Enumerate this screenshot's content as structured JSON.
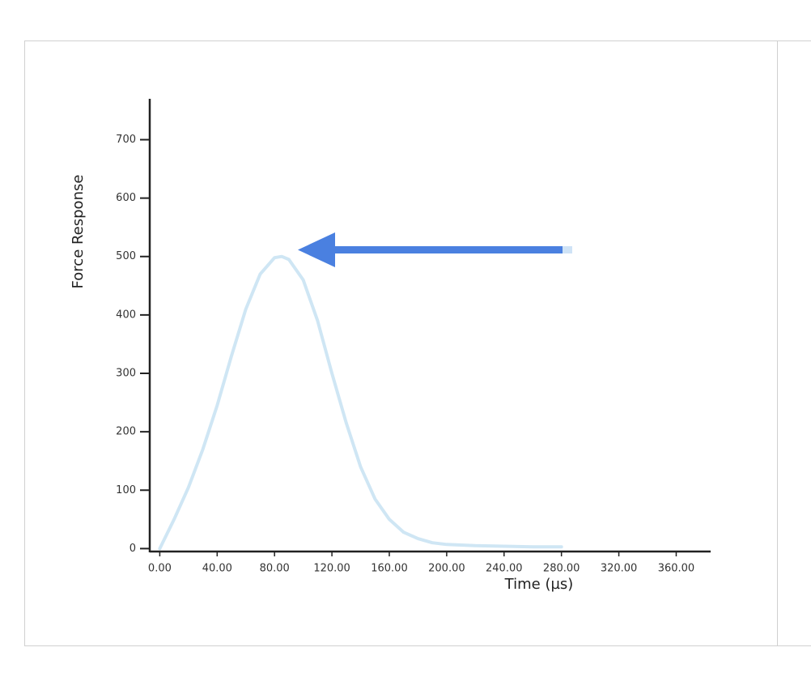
{
  "chart_data": {
    "type": "line",
    "y_label": "Force Response",
    "x_label": "Time (µs)",
    "x": [
      0,
      10,
      20,
      30,
      40,
      50,
      60,
      70,
      80,
      85,
      90,
      100,
      110,
      120,
      130,
      140,
      150,
      160,
      170,
      180,
      190,
      200,
      220,
      240,
      260,
      280
    ],
    "values": [
      0,
      50,
      105,
      170,
      245,
      330,
      410,
      470,
      498,
      500,
      495,
      460,
      390,
      300,
      215,
      140,
      85,
      50,
      28,
      17,
      10,
      7,
      5,
      4,
      3,
      3
    ],
    "color": "#cfe6f4",
    "xlim": [
      -7,
      384
    ],
    "ylim": [
      -5,
      770
    ],
    "xticks": [
      {
        "value": 0,
        "label": "0.00"
      },
      {
        "value": 40,
        "label": "40.00"
      },
      {
        "value": 80,
        "label": "80.00"
      },
      {
        "value": 120,
        "label": "120.00"
      },
      {
        "value": 160,
        "label": "160.00"
      },
      {
        "value": 200,
        "label": "200.00"
      },
      {
        "value": 240,
        "label": "240.00"
      },
      {
        "value": 280,
        "label": "280.00"
      },
      {
        "value": 320,
        "label": "320.00"
      },
      {
        "value": 360,
        "label": "360.00"
      }
    ],
    "yticks": [
      0,
      100,
      200,
      300,
      400,
      500,
      600,
      700
    ]
  }
}
